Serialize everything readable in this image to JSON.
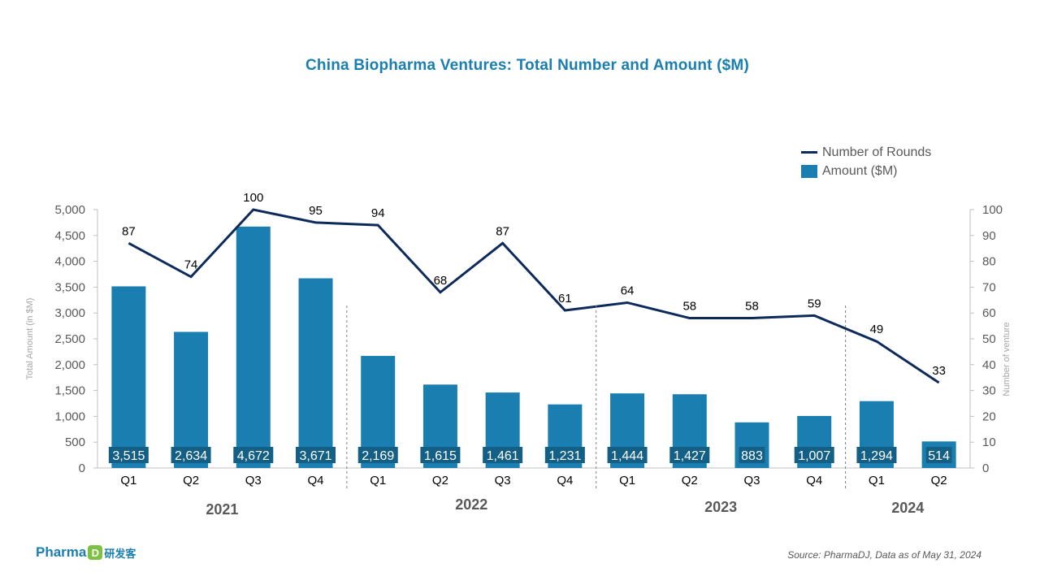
{
  "chart_data": {
    "type": "bar+line",
    "title": "China Biopharma Ventures:  Total Number and Amount ($M)",
    "categories": [
      "Q1",
      "Q2",
      "Q3",
      "Q4",
      "Q1",
      "Q2",
      "Q3",
      "Q4",
      "Q1",
      "Q2",
      "Q3",
      "Q4",
      "Q1",
      "Q2"
    ],
    "groups": [
      {
        "label": "2021",
        "quarters": 4
      },
      {
        "label": "2022",
        "quarters": 4
      },
      {
        "label": "2023",
        "quarters": 4
      },
      {
        "label": "2024",
        "quarters": 2
      }
    ],
    "series": [
      {
        "name": "Amount ($M)",
        "type": "bar",
        "axis": "left",
        "values": [
          3515,
          2634,
          4672,
          3671,
          2169,
          1615,
          1461,
          1231,
          1444,
          1427,
          883,
          1007,
          1294,
          514
        ],
        "labels": [
          "3,515",
          "2,634",
          "4,672",
          "3,671",
          "2,169",
          "1,615",
          "1,461",
          "1,231",
          "1,444",
          "1,427",
          "883",
          "1,007",
          "1,294",
          "514"
        ]
      },
      {
        "name": "Number of Rounds",
        "type": "line",
        "axis": "right",
        "values": [
          87,
          74,
          100,
          95,
          94,
          68,
          87,
          61,
          64,
          58,
          58,
          59,
          49,
          33
        ]
      }
    ],
    "ylabel": "Total Amount (in $M)",
    "y2label": "Number of venture",
    "ylim": [
      0,
      5000
    ],
    "yticks": [
      "0",
      "500",
      "1,000",
      "1,500",
      "2,000",
      "2,500",
      "3,000",
      "3,500",
      "4,000",
      "4,500",
      "5,000"
    ],
    "y2lim": [
      0,
      100
    ],
    "y2ticks": [
      "0",
      "10",
      "20",
      "30",
      "40",
      "50",
      "60",
      "70",
      "80",
      "90",
      "100"
    ],
    "grid": false,
    "legend_position": "top-right",
    "colors": {
      "bar": "#1a7fb0",
      "line": "#0e2a5a",
      "title": "#1a7fb0"
    }
  },
  "source": "Source: PharmaDJ, Data as of May 31, 2024",
  "brand": {
    "name": "Pharma",
    "mark": "D",
    "cn": "研发客"
  }
}
